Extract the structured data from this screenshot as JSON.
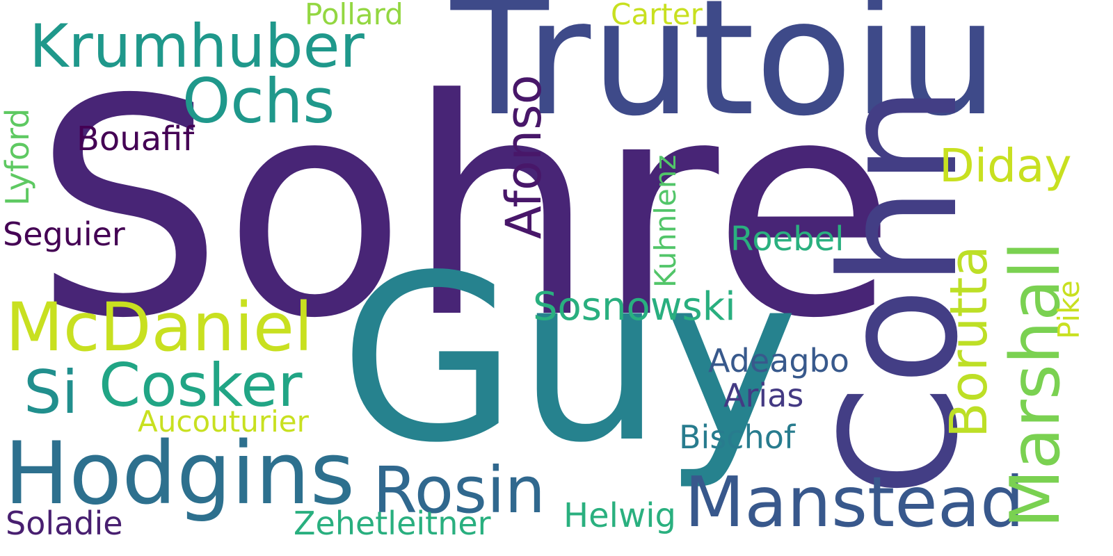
{
  "words": {
    "sohre": "Sohre",
    "trutoiu": "Trutoiu",
    "guy": "Guy",
    "cohn": "Cohn",
    "krumhuber": "Krumhuber",
    "ochs": "Ochs",
    "mcdaniel": "McDaniel",
    "si": "Si",
    "cosker": "Cosker",
    "hodgins": "Hodgins",
    "rosin": "Rosin",
    "manstead": "Manstead",
    "marshall": "Marshall",
    "borutta": "Borutta",
    "afonso": "Afonso",
    "diday": "Diday",
    "sosnowski": "Sosnowski",
    "roebel": "Roebel",
    "adeagbo": "Adeagbo",
    "arias": "Arias",
    "bischof": "Bischof",
    "helwig": "Helwig",
    "zehetleitner": "Zehetleitner",
    "soladie": "Soladie",
    "aucouturier": "Aucouturier",
    "seguier": "Seguier",
    "bouafif": "Bouafif",
    "lyford": "Lyford",
    "kuhnlenz": "Kuhnlenz",
    "pike": "Pike",
    "pollard": "Pollard",
    "carter": "Carter"
  },
  "colors": {
    "background": "#ffffff",
    "palette": "viridis"
  }
}
